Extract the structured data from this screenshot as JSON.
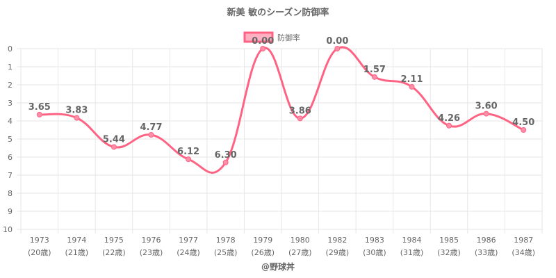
{
  "chart_data": {
    "type": "line",
    "title": "新美 敏のシーズン防御率",
    "legend": {
      "label": "防御率",
      "position": "top"
    },
    "categories": [
      "1973",
      "1974",
      "1975",
      "1976",
      "1977",
      "1978",
      "1979",
      "1980",
      "1982",
      "1983",
      "1984",
      "1985",
      "1986",
      "1987"
    ],
    "sub_labels": [
      "(20歳)",
      "(21歳)",
      "(22歳)",
      "(23歳)",
      "(24歳)",
      "(25歳)",
      "(26歳)",
      "(27歳)",
      "(29歳)",
      "(30歳)",
      "(31歳)",
      "(32歳)",
      "(33歳)",
      "(34歳)"
    ],
    "series": [
      {
        "name": "防御率",
        "values": [
          3.65,
          3.83,
          5.44,
          4.77,
          6.12,
          6.3,
          0.0,
          3.86,
          0.0,
          1.57,
          2.11,
          4.26,
          3.6,
          4.5
        ],
        "labels": [
          "3.65",
          "3.83",
          "5.44",
          "4.77",
          "6.12",
          "6.30",
          "0.00",
          "3.86",
          "0.00",
          "1.57",
          "2.11",
          "4.26",
          "3.60",
          "4.50"
        ]
      }
    ],
    "y_ticks": [
      "0",
      "1",
      "2",
      "3",
      "4",
      "5",
      "6",
      "7",
      "8",
      "9",
      "10"
    ],
    "ylim": [
      0,
      10
    ],
    "y_reversed": true,
    "grid": true,
    "colors": {
      "line": "#ff6384",
      "point_fill": "#ff8fa8",
      "legend_fill": "#ffb1c1",
      "grid": "#e6e6e6",
      "text": "#666666"
    }
  },
  "footer": {
    "credit": "@野球丼"
  }
}
